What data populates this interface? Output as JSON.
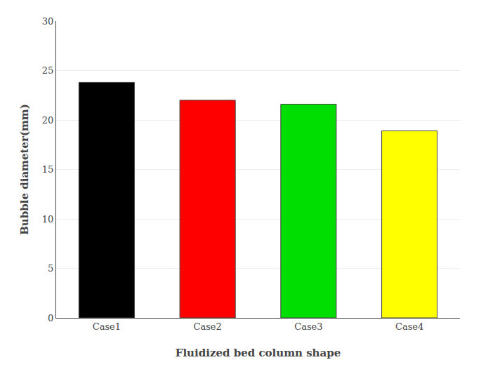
{
  "chart_data": {
    "type": "bar",
    "xlabel": "Fluidized bed column shape",
    "ylabel": "Bubble diameter(mm)",
    "categories": [
      "Case1",
      "Case2",
      "Case3",
      "Case4"
    ],
    "values": [
      23.8,
      22.0,
      21.6,
      18.9
    ],
    "colors": [
      "#000000",
      "#ff0000",
      "#00dd00",
      "#ffff00"
    ],
    "ylim": [
      0,
      30
    ],
    "yticks": [
      0,
      5,
      10,
      15,
      20,
      25,
      30
    ],
    "grid": true
  }
}
